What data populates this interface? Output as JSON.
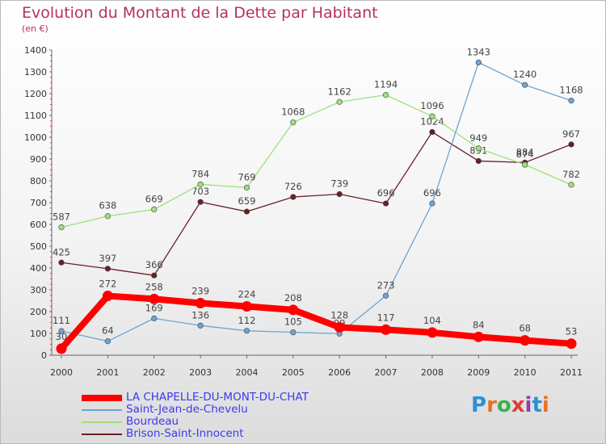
{
  "header": {
    "title": "Evolution du Montant de la Dette par Habitant",
    "subtitle": "(en €)"
  },
  "brand": {
    "letters": [
      "P",
      "r",
      "o",
      "x",
      "i",
      "t",
      "i"
    ],
    "colors": [
      "#2f8fd6",
      "#e6731e",
      "#3bb14a",
      "#e23a3a",
      "#8e3fb0",
      "#2f8fd6",
      "#e6731e"
    ]
  },
  "chart_data": {
    "type": "line",
    "x": [
      2000,
      2001,
      2002,
      2003,
      2004,
      2005,
      2006,
      2007,
      2008,
      2009,
      2010,
      2011
    ],
    "ylim": [
      0,
      1400
    ],
    "yticks": [
      0,
      100,
      200,
      300,
      400,
      500,
      600,
      700,
      800,
      900,
      1000,
      1100,
      1200,
      1300,
      1400
    ],
    "grid": false,
    "legend": "bottom-left",
    "series": [
      {
        "name": "Brison-Saint-Innocent",
        "color": "#6b1e27",
        "values": [
          425,
          397,
          366,
          703,
          659,
          726,
          739,
          696,
          1024,
          891,
          884,
          967
        ],
        "labels": [
          "425",
          "397",
          "366",
          "703",
          "659",
          "726",
          "739",
          "696",
          "1024",
          "891",
          "884",
          "967"
        ]
      },
      {
        "name": "Bourdeau",
        "color": "#9ee07a",
        "values": [
          587,
          638,
          669,
          784,
          769,
          1068,
          1162,
          1194,
          1096,
          949,
          874,
          782
        ],
        "labels": [
          "587",
          "638",
          "669",
          "784",
          "769",
          "1068",
          "1162",
          "1194",
          "1096",
          "949",
          "874",
          "782"
        ]
      },
      {
        "name": "Saint-Jean-de-Chevelu",
        "color": "#6fa3d3",
        "values": [
          111,
          64,
          169,
          136,
          112,
          105,
          99,
          273,
          696,
          1343,
          1240,
          1168
        ],
        "labels": [
          "111",
          "64",
          "169",
          "136",
          "112",
          "105",
          "99",
          "273",
          "696",
          "1343",
          "1240",
          "1168"
        ]
      },
      {
        "name": "LA CHAPELLE-DU-MONT-DU-CHAT",
        "color": "#ff0000",
        "values": [
          30,
          272,
          258,
          239,
          224,
          208,
          128,
          117,
          104,
          84,
          68,
          53
        ],
        "labels": [
          "30",
          "272",
          "258",
          "239",
          "224",
          "208",
          "128",
          "117",
          "104",
          "84",
          "68",
          "53"
        ]
      }
    ],
    "legend_order": [
      "LA CHAPELLE-DU-MONT-DU-CHAT",
      "Saint-Jean-de-Chevelu",
      "Bourdeau",
      "Brison-Saint-Innocent"
    ]
  }
}
